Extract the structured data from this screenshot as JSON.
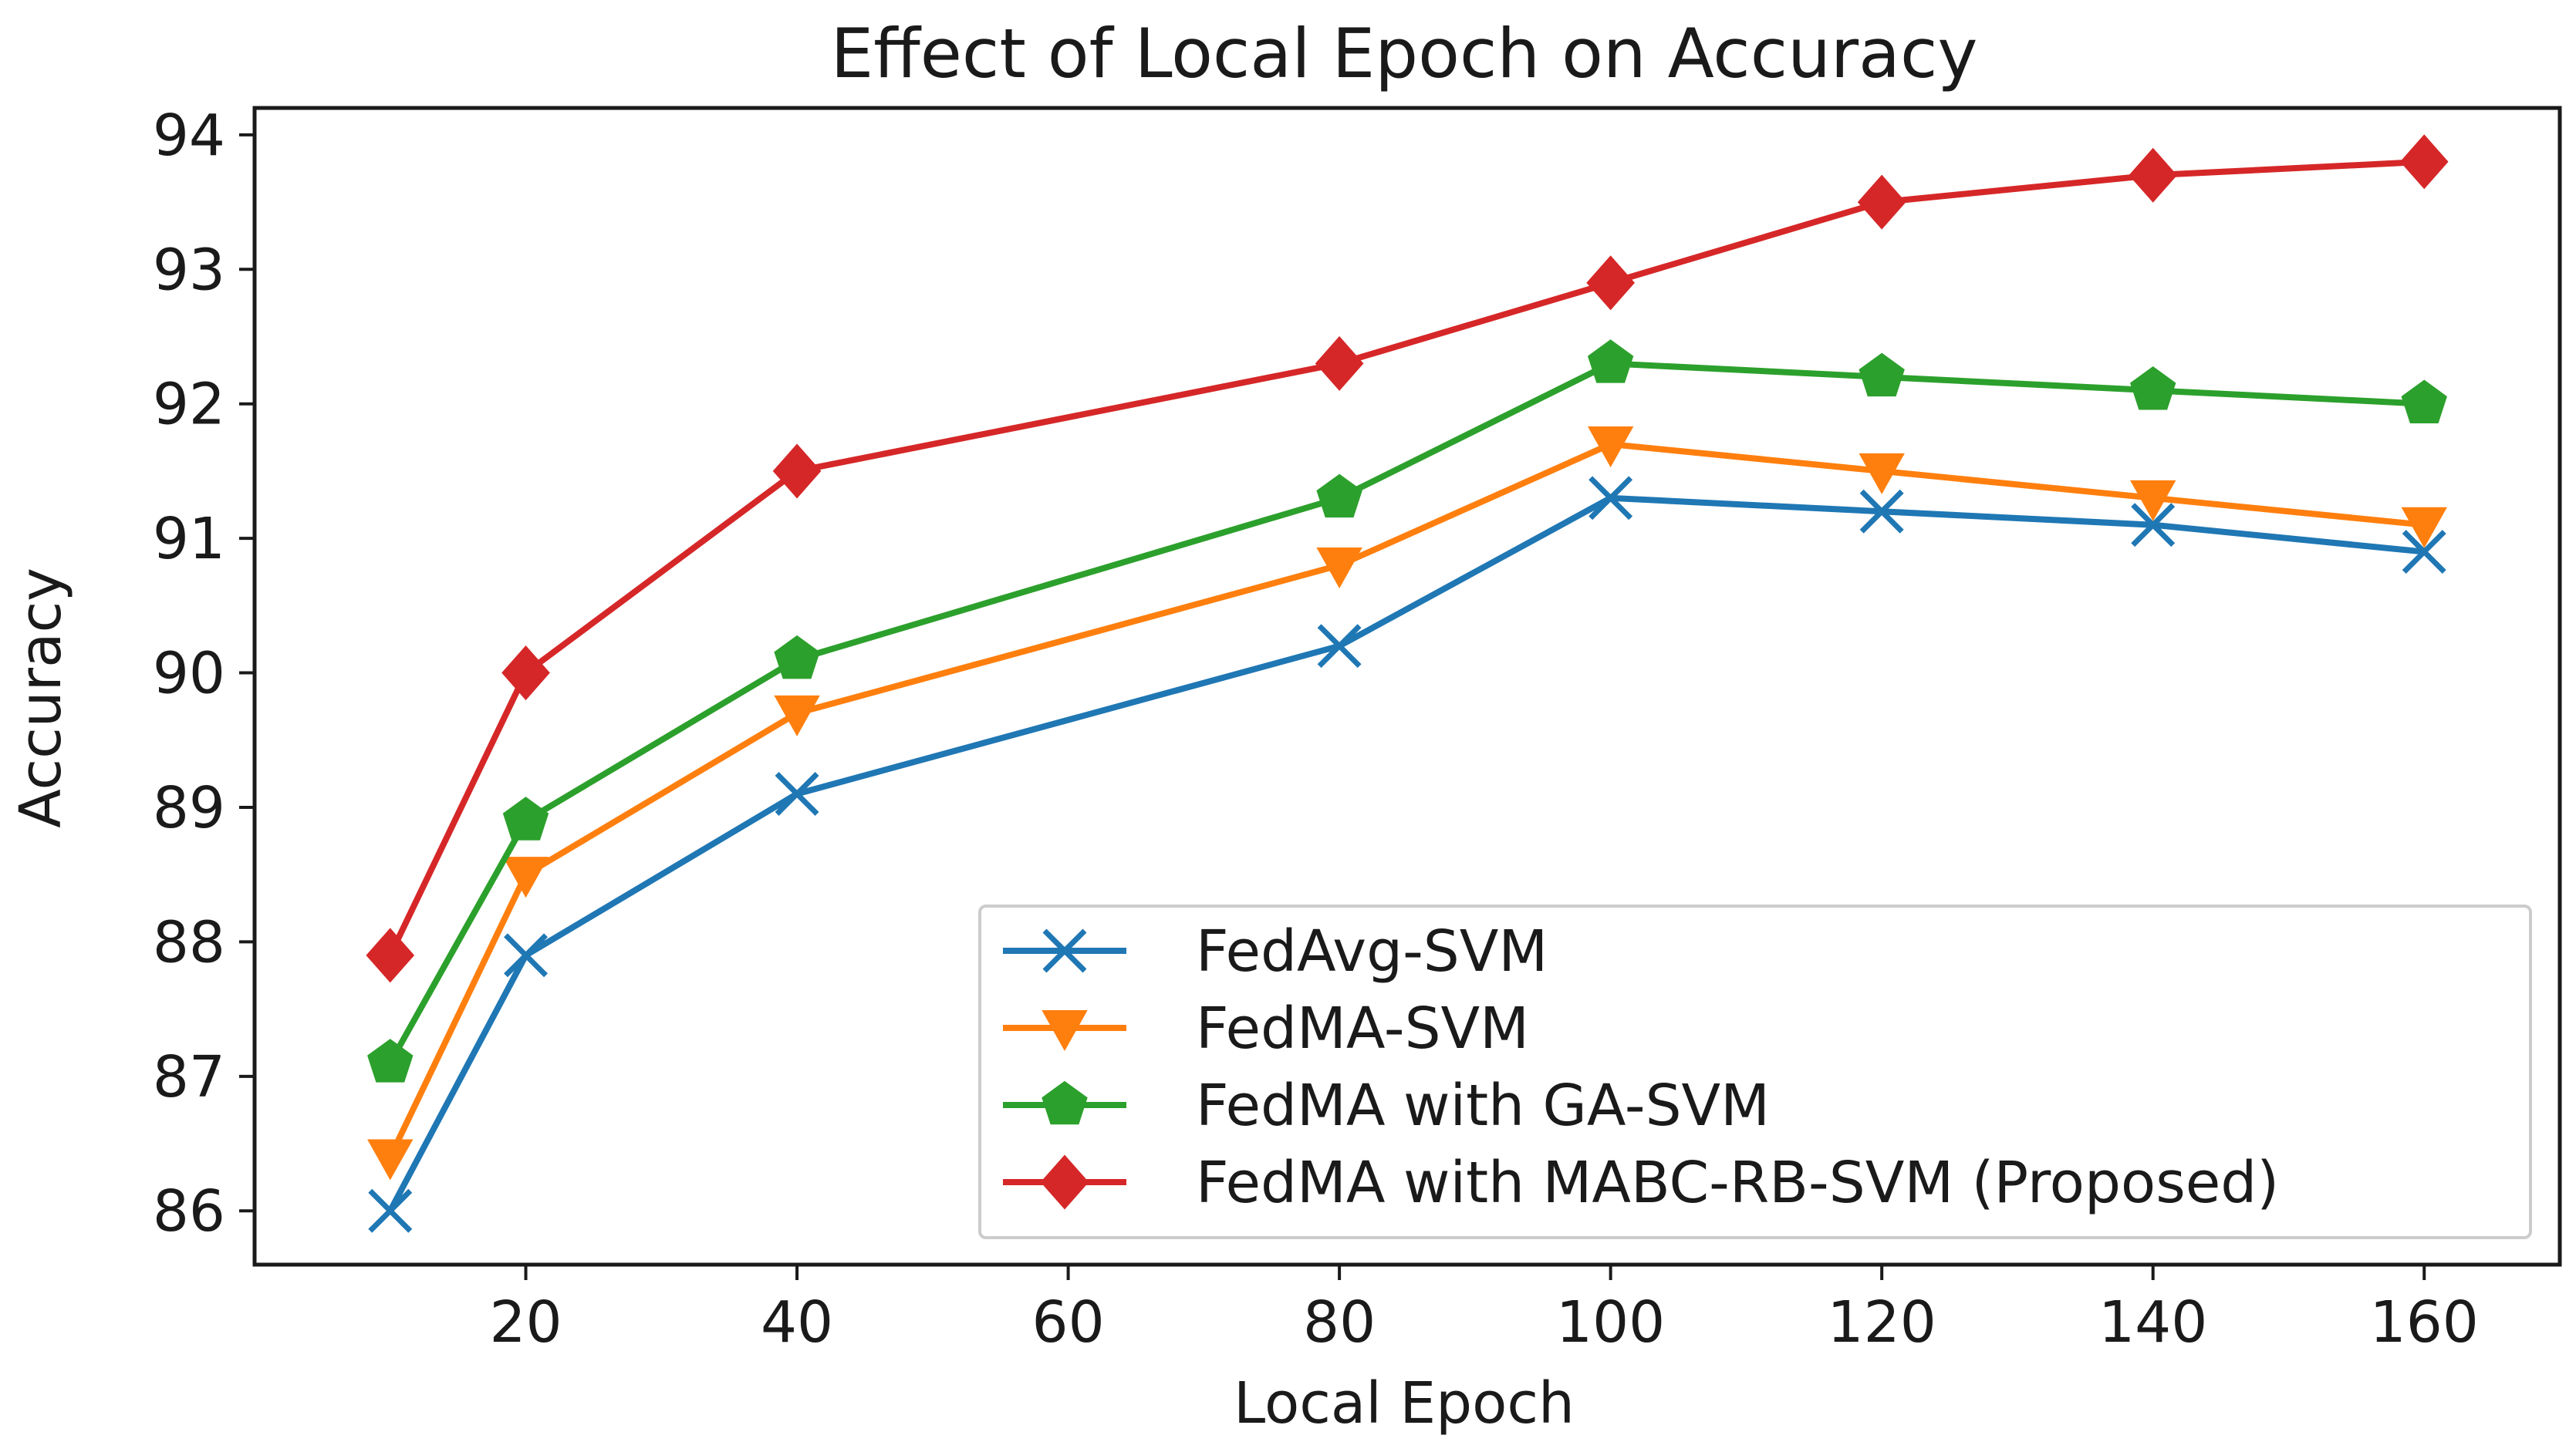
{
  "chart_data": {
    "type": "line",
    "title": "Effect of Local Epoch on Accuracy",
    "xlabel": "Local Epoch",
    "ylabel": "Accuracy",
    "xlim": [
      0,
      170
    ],
    "ylim": [
      85.6,
      94.2
    ],
    "xticks": [
      20,
      40,
      60,
      80,
      100,
      120,
      140,
      160
    ],
    "yticks": [
      86,
      87,
      88,
      89,
      90,
      91,
      92,
      93,
      94
    ],
    "x": [
      10,
      20,
      40,
      80,
      100,
      120,
      140,
      160
    ],
    "grid": false,
    "legend_position": "lower-right",
    "series": [
      {
        "name": "FedAvg-SVM",
        "color": "#1f77b4",
        "marker": "x",
        "values": [
          86.0,
          87.9,
          89.1,
          90.2,
          91.3,
          91.2,
          91.1,
          90.9
        ]
      },
      {
        "name": "FedMA-SVM",
        "color": "#ff7f0e",
        "marker": "triangle-down",
        "values": [
          86.4,
          88.5,
          89.7,
          90.8,
          91.7,
          91.5,
          91.3,
          91.1
        ]
      },
      {
        "name": "FedMA with GA-SVM",
        "color": "#2ca02c",
        "marker": "pentagon",
        "values": [
          87.1,
          88.9,
          90.1,
          91.3,
          92.3,
          92.2,
          92.1,
          92.0
        ]
      },
      {
        "name": "FedMA with MABC-RB-SVM (Proposed)",
        "color": "#d62728",
        "marker": "diamond",
        "values": [
          87.9,
          90.0,
          91.5,
          92.3,
          92.9,
          93.5,
          93.7,
          93.8
        ]
      }
    ]
  }
}
